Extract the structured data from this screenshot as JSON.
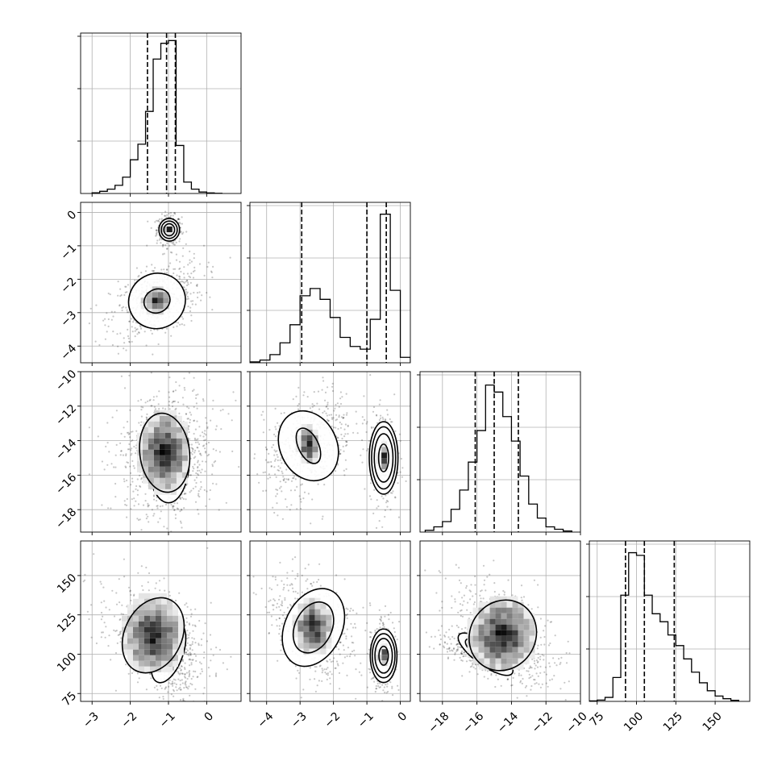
{
  "chart_data": {
    "type": "scatter",
    "layout": "corner-plot",
    "grid": true,
    "parameters": [
      {
        "range": [
          -3.3,
          0.9
        ],
        "ticks": [
          -3,
          -2,
          -1,
          0
        ],
        "tick_labels": [
          "−3",
          "−2",
          "−1",
          "0"
        ],
        "quantiles": [
          -1.55,
          -1.05,
          -0.82
        ],
        "hist_bins": [
          -3.0,
          -2.8,
          -2.6,
          -2.4,
          -2.2,
          -2.0,
          -1.8,
          -1.6,
          -1.4,
          -1.2,
          -1.0,
          -0.8,
          -0.6,
          -0.4,
          -0.2,
          0.0,
          0.2,
          0.4
        ],
        "hist_counts": [
          0.4,
          1.2,
          2.4,
          4.5,
          9.0,
          18.6,
          27.2,
          45.3,
          74.2,
          82.9,
          84.4,
          26.5,
          6.3,
          2.4,
          0.8,
          0.3,
          0.1
        ],
        "hist_ylim": [
          0,
          85
        ]
      },
      {
        "range": [
          -4.5,
          0.3
        ],
        "ticks": [
          -4,
          -3,
          -2,
          -1,
          0
        ],
        "tick_labels": [
          "−4",
          "−3",
          "−2",
          "−1",
          "0"
        ],
        "quantiles": [
          -2.95,
          -1.0,
          -0.42
        ],
        "hist_bins": [
          -4.5,
          -4.2,
          -3.9,
          -3.6,
          -3.3,
          -3.0,
          -2.7,
          -2.4,
          -2.1,
          -1.8,
          -1.5,
          -1.2,
          -0.9,
          -0.6,
          -0.3,
          0.0,
          0.3
        ],
        "hist_counts": [
          0.5,
          1.5,
          4.5,
          11.0,
          21.0,
          37.0,
          41.0,
          35.0,
          25.0,
          14.0,
          9.0,
          7.5,
          24.0,
          82.0,
          40.0,
          3.0
        ],
        "hist_ylim": [
          0,
          85
        ]
      },
      {
        "range": [
          -19.3,
          -10.0
        ],
        "ticks": [
          -18,
          -16,
          -14,
          -12,
          -10
        ],
        "tick_labels": [
          "−18",
          "−16",
          "−14",
          "−12",
          "−10"
        ],
        "quantiles": [
          -16.1,
          -15.0,
          -13.6
        ],
        "hist_bins": [
          -19.0,
          -18.5,
          -18.0,
          -17.5,
          -17.0,
          -16.5,
          -16.0,
          -15.5,
          -15.0,
          -14.5,
          -14.0,
          -13.5,
          -13.0,
          -12.5,
          -12.0,
          -11.5,
          -11.0,
          -10.5
        ],
        "hist_counts": [
          0.5,
          1.5,
          3.0,
          6.5,
          12.0,
          20.0,
          29.0,
          42.0,
          40.0,
          33.0,
          26.0,
          16.0,
          8.0,
          4.0,
          1.5,
          0.8,
          0.3
        ],
        "hist_ylim": [
          0,
          44
        ]
      },
      {
        "range": [
          70,
          172
        ],
        "ticks": [
          75,
          100,
          125,
          150
        ],
        "tick_labels": [
          "75",
          "100",
          "125",
          "150"
        ],
        "quantiles": [
          93,
          105,
          124
        ],
        "hist_bins": [
          70,
          75,
          80,
          85,
          90,
          95,
          100,
          105,
          110,
          115,
          120,
          125,
          130,
          135,
          140,
          145,
          150,
          155,
          160,
          165
        ],
        "hist_counts": [
          0.2,
          0.5,
          1.5,
          9.0,
          40.0,
          56.0,
          55.0,
          40.0,
          33.0,
          30.0,
          25.0,
          21.0,
          16.0,
          11.0,
          7.0,
          4.0,
          2.0,
          1.0,
          0.4
        ],
        "hist_ylim": [
          0,
          58
        ]
      }
    ],
    "pairs": [
      {
        "row": 1,
        "col": 0,
        "clusters": [
          {
            "center": [
              -0.98,
              -0.52
            ],
            "sd": [
              0.12,
              0.16
            ],
            "rho": 0.0,
            "weight": 0.4,
            "contours": [
              [
                0.14,
                0.18
              ],
              [
                0.21,
                0.26
              ],
              [
                0.27,
                0.34
              ]
            ]
          },
          {
            "center": [
              -1.3,
              -2.65
            ],
            "sd": [
              0.45,
              0.45
            ],
            "rho": 0.45,
            "weight": 0.6,
            "contours": [
              [
                0.35,
                0.35
              ],
              [
                0.75,
                0.82
              ]
            ]
          }
        ]
      },
      {
        "row": 2,
        "col": 0,
        "clusters": [
          {
            "center": [
              -1.0,
              -15.0
            ],
            "sd": [
              0.35,
              1.3
            ],
            "rho": 0.0,
            "weight": 0.55,
            "contours": [
              [
                0.18,
                1.2
              ],
              [
                0.36,
                1.8
              ],
              [
                0.55,
                2.6
              ]
            ]
          },
          {
            "center": [
              -1.1,
              -14.7
            ],
            "sd": [
              0.55,
              1.4
            ],
            "rho": 0.1,
            "weight": 0.45,
            "contours": [
              [
                0.65,
                2.3
              ]
            ]
          }
        ]
      },
      {
        "row": 2,
        "col": 1,
        "clusters": [
          {
            "center": [
              -0.5,
              -15.0
            ],
            "sd": [
              0.15,
              1.0
            ],
            "rho": 0.0,
            "weight": 0.4,
            "contours": [
              [
                0.15,
                0.8
              ],
              [
                0.28,
                1.4
              ],
              [
                0.36,
                1.8
              ],
              [
                0.43,
                2.1
              ]
            ]
          },
          {
            "center": [
              -2.75,
              -14.3
            ],
            "sd": [
              0.5,
              1.2
            ],
            "rho": 0.4,
            "weight": 0.6,
            "contours": [
              [
                0.3,
                1.1
              ],
              [
                0.85,
                2.1
              ]
            ]
          }
        ]
      },
      {
        "row": 3,
        "col": 0,
        "clusters": [
          {
            "center": [
              -1.0,
              101.0
            ],
            "sd": [
              0.25,
              10.0
            ],
            "rho": -0.3,
            "weight": 0.5,
            "contours": [
              [
                0.22,
                12.0
              ],
              [
                0.38,
                20.0
              ]
            ]
          },
          {
            "center": [
              -1.4,
              112.0
            ],
            "sd": [
              0.55,
              13.0
            ],
            "rho": -0.4,
            "weight": 0.5,
            "contours": [
              [
                0.75,
                25.0
              ]
            ]
          }
        ]
      },
      {
        "row": 3,
        "col": 1,
        "clusters": [
          {
            "center": [
              -0.5,
              99.0
            ],
            "sd": [
              0.14,
              8.0
            ],
            "rho": 0.0,
            "weight": 0.4,
            "contours": [
              [
                0.14,
                6.0
              ],
              [
                0.26,
                11.0
              ],
              [
                0.34,
                14.0
              ],
              [
                0.4,
                17.0
              ]
            ]
          },
          {
            "center": [
              -2.6,
              117.0
            ],
            "sd": [
              0.5,
              13.0
            ],
            "rho": -0.4,
            "weight": 0.6,
            "contours": [
              [
                0.55,
                17.0
              ],
              [
                0.85,
                26.0
              ]
            ]
          }
        ]
      },
      {
        "row": 3,
        "col": 2,
        "clusters": [
          {
            "center": [
              -15.5,
              100.0
            ],
            "sd": [
              0.9,
              5.0
            ],
            "rho": -0.6,
            "weight": 0.45,
            "contours": [
              [
                0.9,
                3.2
              ],
              [
                1.4,
                5.0
              ],
              [
                1.9,
                7.0
              ]
            ]
          },
          {
            "center": [
              -14.5,
              112.0
            ],
            "sd": [
              1.2,
              14.0
            ],
            "rho": -0.5,
            "weight": 0.55,
            "contours": [
              [
                1.9,
                23.0
              ]
            ]
          }
        ]
      }
    ]
  }
}
